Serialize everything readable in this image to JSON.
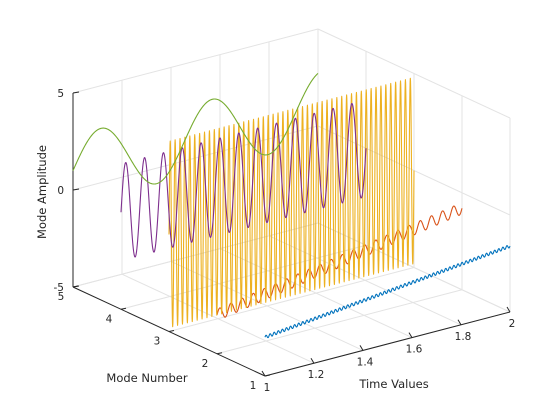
{
  "chart_data": {
    "type": "line",
    "projection": "3d",
    "title": "",
    "xlabel": "Time Values",
    "ylabel": "Mode Number",
    "zlabel": "Mode Amplitude",
    "xlim": [
      1,
      2
    ],
    "ylim": [
      1,
      5
    ],
    "zlim": [
      -5,
      5
    ],
    "grid": true,
    "x_ticks": [
      "1",
      "1.2",
      "1.4",
      "1.6",
      "1.8",
      "2"
    ],
    "y_ticks": [
      "1",
      "2",
      "3",
      "4",
      "5"
    ],
    "z_ticks": [
      "-5",
      "0",
      "5"
    ],
    "series": [
      {
        "mode": 1,
        "color": "#0072BD",
        "x_start": 1.0,
        "x_end": 2.0,
        "offset": -3.0,
        "trend": 1.4,
        "amplitude": 0.08,
        "cycles": 60
      },
      {
        "mode": 2,
        "color": "#D95319",
        "x_start": 1.0,
        "x_end": 2.0,
        "offset": -3.0,
        "trend": 2.2,
        "amplitude": 0.3,
        "cycles": 22
      },
      {
        "mode": 3,
        "color": "#EDB120",
        "x_start": 1.0,
        "x_end": 2.0,
        "offset": 0.0,
        "trend": 0.0,
        "amplitude": 4.8,
        "cycles": 50
      },
      {
        "mode": 4,
        "color": "#7E2F8E",
        "x_start": 1.0,
        "x_end": 2.0,
        "offset": 0.0,
        "trend": 0.0,
        "amplitude": 2.5,
        "cycles": 13
      },
      {
        "mode": 5,
        "color": "#77AC30",
        "x_start": 1.0,
        "x_end": 2.0,
        "offset": 1.0,
        "trend": 0.0,
        "amplitude": 1.8,
        "cycles": 2.2
      }
    ]
  }
}
